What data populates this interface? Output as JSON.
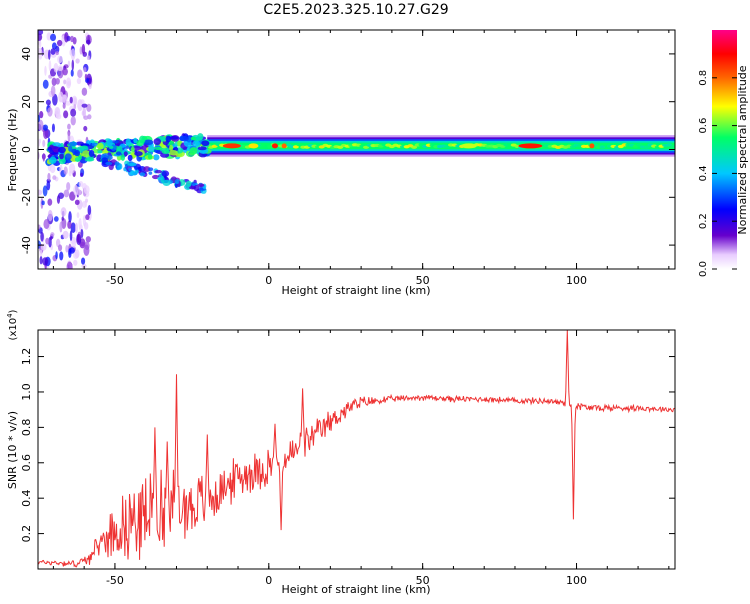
{
  "title": "C2E5.2023.325.10.27.G29",
  "chart_data": [
    {
      "type": "heatmap",
      "xlabel": "Height of straight line (km)",
      "ylabel": "Frequency (Hz)",
      "xlim": [
        -75,
        132
      ],
      "ylim": [
        -50,
        50
      ],
      "x_ticks": [
        -50,
        0,
        50,
        100
      ],
      "y_ticks": [
        -40,
        -20,
        0,
        20,
        40
      ],
      "grid": false,
      "colorbar": {
        "label": "Normalized spectral amplitude",
        "range": [
          0,
          1
        ],
        "ticks": [
          "0.0",
          "0.2",
          "0.4",
          "0.6",
          "0.8"
        ],
        "colors": [
          "#ffffff",
          "#6600cc",
          "#0000ff",
          "#00c8ff",
          "#00ff66",
          "#ffff00",
          "#ff6600",
          "#ff0000",
          "#ff0088"
        ]
      },
      "features": [
        {
          "name": "main-band",
          "x": [
            -20,
            132
          ],
          "freq_center": 1.5,
          "freq_halfwidth": 2.5
        },
        {
          "name": "noisy-band",
          "x": [
            -72,
            -20
          ],
          "freq_center": -2,
          "freq_halfwidth": 4
        },
        {
          "name": "lower-branch",
          "x": [
            -55,
            -20
          ],
          "freq_start": -4,
          "freq_end": -17
        },
        {
          "name": "diffuse-noise",
          "x": [
            -75,
            -58
          ],
          "freq_range": [
            -50,
            50
          ]
        }
      ]
    },
    {
      "type": "line",
      "xlabel": "Height of straight line (km)",
      "ylabel": "SNR (10 * v/v)",
      "y_multiplier_label": "(x10^4)",
      "xlim": [
        -75,
        132
      ],
      "ylim": [
        0,
        1.35
      ],
      "x_ticks": [
        -50,
        0,
        50,
        100
      ],
      "y_ticks": [
        0.2,
        0.4,
        0.6,
        0.8,
        1.0,
        1.2
      ],
      "grid": false,
      "series": [
        {
          "color": "#ee3333",
          "trend_x": [
            -75,
            -62,
            -57,
            -55,
            -50,
            -45,
            -40,
            -35,
            -30,
            -25,
            -20,
            -15,
            -10,
            -5,
            0,
            5,
            10,
            15,
            20,
            25,
            30,
            35,
            40,
            50,
            60,
            70,
            80,
            90,
            95,
            100,
            105,
            110,
            120,
            132
          ],
          "trend_y": [
            0.04,
            0.03,
            0.08,
            0.15,
            0.22,
            0.27,
            0.3,
            0.33,
            0.34,
            0.36,
            0.38,
            0.45,
            0.52,
            0.55,
            0.58,
            0.62,
            0.68,
            0.75,
            0.83,
            0.9,
            0.94,
            0.95,
            0.96,
            0.97,
            0.96,
            0.96,
            0.95,
            0.95,
            0.94,
            0.92,
            0.91,
            0.91,
            0.91,
            0.9
          ],
          "amplitude_x": [
            -75,
            -60,
            -55,
            -45,
            -35,
            -25,
            -15,
            0,
            10,
            20,
            30,
            40,
            90,
            100,
            132
          ],
          "amplitude_y": [
            0.01,
            0.02,
            0.06,
            0.18,
            0.22,
            0.16,
            0.1,
            0.1,
            0.08,
            0.06,
            0.03,
            0.015,
            0.015,
            0.02,
            0.012
          ],
          "peaks": [
            {
              "x": -30,
              "y": 1.1
            },
            {
              "x": -37,
              "y": 0.8
            },
            {
              "x": -33,
              "y": 0.72
            },
            {
              "x": -20,
              "y": 0.76
            },
            {
              "x": 11,
              "y": 1.02
            },
            {
              "x": 2,
              "y": 0.82
            },
            {
              "x": 97,
              "y": 1.35
            },
            {
              "x": 99,
              "y": 0.28
            },
            {
              "x": 4,
              "y": 0.22
            }
          ]
        }
      ]
    }
  ]
}
